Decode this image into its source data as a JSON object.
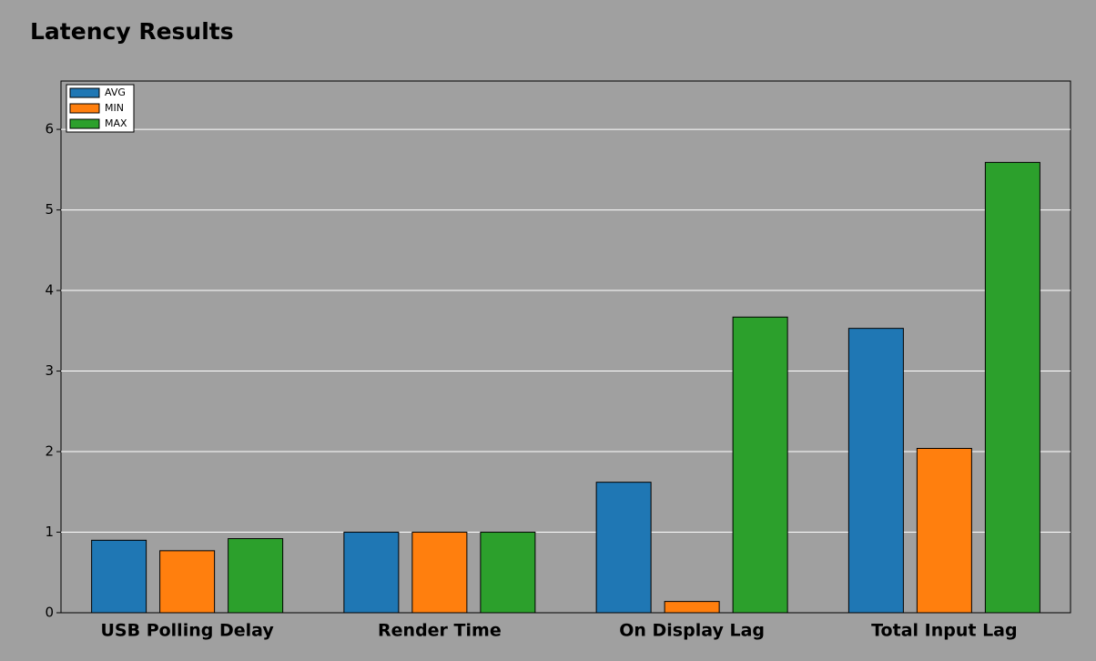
{
  "chart_data": {
    "type": "bar",
    "title": "Latency Results",
    "categories": [
      "USB Polling Delay",
      "Render Time",
      "On Display Lag",
      "Total Input Lag"
    ],
    "series": [
      {
        "name": "AVG",
        "color": "#1f77b4",
        "values": [
          0.9,
          1.0,
          1.62,
          3.53
        ]
      },
      {
        "name": "MIN",
        "color": "#ff7f0e",
        "values": [
          0.77,
          1.0,
          0.14,
          2.04
        ]
      },
      {
        "name": "MAX",
        "color": "#2ca02c",
        "values": [
          0.92,
          1.0,
          3.67,
          5.59
        ]
      }
    ],
    "ylim": [
      0,
      6.6
    ],
    "yticks": [
      0,
      1,
      2,
      3,
      4,
      5,
      6
    ],
    "grid": true,
    "legend": "top-left"
  }
}
